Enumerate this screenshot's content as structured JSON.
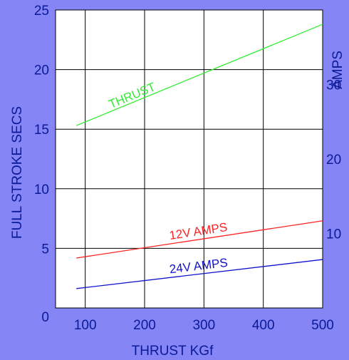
{
  "chart_data": {
    "type": "line",
    "xlabel": "THRUST KGf",
    "ylabel_left": "FULL STROKE SECS",
    "ylabel_right": "AMPS",
    "xlim": [
      50,
      500
    ],
    "ylim_left": [
      0,
      25
    ],
    "ylim_right": [
      0,
      40
    ],
    "x_ticks": [
      "100",
      "200",
      "300",
      "400",
      "500"
    ],
    "y_ticks_left": [
      "0",
      "5",
      "10",
      "15",
      "20",
      "25"
    ],
    "y_ticks_right": [
      "10",
      "20",
      "30"
    ],
    "grid": true,
    "series": [
      {
        "name": "THRUST",
        "color": "#33ee33",
        "axis": "left",
        "x": [
          85,
          500
        ],
        "values": [
          15.3,
          23.8
        ]
      },
      {
        "name": "12V AMPS",
        "color": "#ff2222",
        "axis": "right",
        "x": [
          85,
          500
        ],
        "values": [
          6.7,
          11.7
        ]
      },
      {
        "name": "24V AMPS",
        "color": "#1111cc",
        "axis": "right",
        "x": [
          85,
          500
        ],
        "values": [
          2.6,
          6.5
        ]
      }
    ]
  },
  "colors": {
    "background": "#8585f5",
    "plot_area": "#ffffff",
    "axis_text": "#0a1a99",
    "grid": "#000000"
  }
}
